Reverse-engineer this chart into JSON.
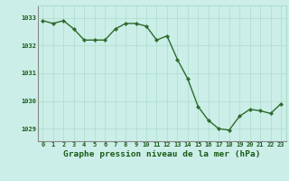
{
  "x": [
    0,
    1,
    2,
    3,
    4,
    5,
    6,
    7,
    8,
    9,
    10,
    11,
    12,
    13,
    14,
    15,
    16,
    17,
    18,
    19,
    20,
    21,
    22,
    23
  ],
  "y": [
    1032.9,
    1032.8,
    1032.9,
    1032.6,
    1032.2,
    1032.2,
    1032.2,
    1032.6,
    1032.8,
    1032.8,
    1032.7,
    1032.2,
    1032.35,
    1031.5,
    1030.8,
    1029.8,
    1029.3,
    1029.0,
    1028.95,
    1029.45,
    1029.7,
    1029.65,
    1029.55,
    1029.9
  ],
  "line_color": "#2d6b2d",
  "marker_color": "#2d6b2d",
  "bg_color": "#cceee8",
  "grid_color": "#aaddcc",
  "text_color": "#1a5c1a",
  "xlabel": "Graphe pression niveau de la mer (hPa)",
  "ylim_min": 1028.55,
  "ylim_max": 1033.45,
  "yticks": [
    1029,
    1030,
    1031,
    1032,
    1033
  ],
  "xticks": [
    0,
    1,
    2,
    3,
    4,
    5,
    6,
    7,
    8,
    9,
    10,
    11,
    12,
    13,
    14,
    15,
    16,
    17,
    18,
    19,
    20,
    21,
    22,
    23
  ],
  "tick_label_fontsize": 5.0,
  "xlabel_fontsize": 6.8,
  "marker_size": 2.2,
  "line_width": 1.0
}
